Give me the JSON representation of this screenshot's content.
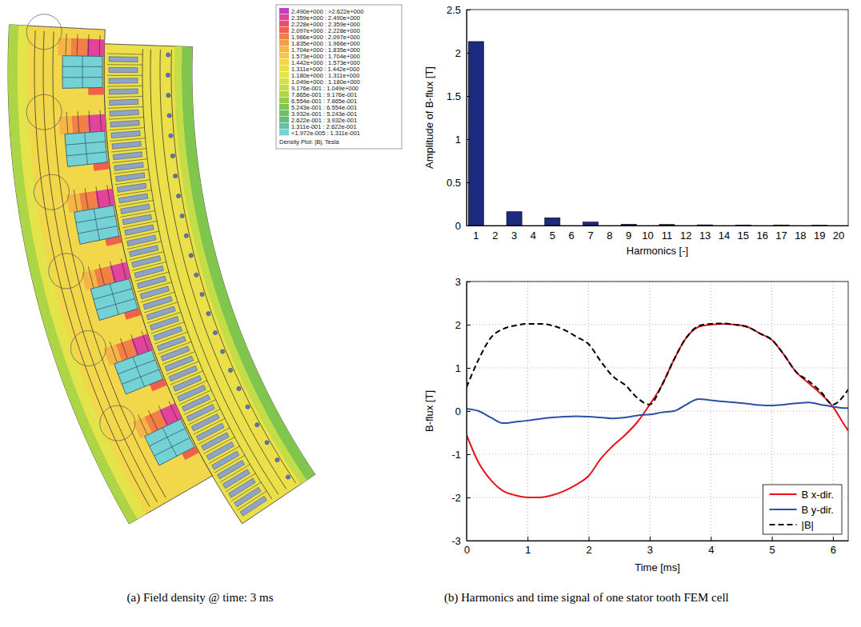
{
  "chart_data": [
    {
      "type": "bar",
      "x_label": "Harmonics [-]",
      "y_label": "Amplitude of B-flux [T]",
      "categories": [
        "1",
        "2",
        "3",
        "4",
        "5",
        "6",
        "7",
        "8",
        "9",
        "10",
        "11",
        "12",
        "13",
        "14",
        "15",
        "16",
        "17",
        "18",
        "19",
        "20"
      ],
      "values": [
        2.13,
        0,
        0.16,
        0,
        0.09,
        0,
        0.04,
        0,
        0.015,
        0,
        0.012,
        0,
        0.008,
        0,
        0.004,
        0,
        0.003,
        0,
        0.002,
        0
      ],
      "color": "#1c2a80",
      "ylim": [
        0,
        2.5
      ],
      "yticks": [
        0,
        0.5,
        1,
        1.5,
        2,
        2.5
      ],
      "grid": false
    },
    {
      "type": "line",
      "x_label": "Time [ms]",
      "y_label": "B-flux [T]",
      "x": [
        0,
        0.2,
        0.4,
        0.6,
        0.8,
        1.0,
        1.2,
        1.4,
        1.6,
        1.8,
        2.0,
        2.2,
        2.4,
        2.6,
        2.8,
        3.0,
        3.2,
        3.4,
        3.6,
        3.8,
        4.0,
        4.2,
        4.4,
        4.6,
        4.8,
        5.0,
        5.2,
        5.4,
        5.6,
        5.8,
        6.0,
        6.2,
        6.25
      ],
      "series": [
        {
          "name": "B x-dir.",
          "color": "#e8121b",
          "line_style": "solid",
          "values": [
            -0.55,
            -1.2,
            -1.6,
            -1.85,
            -1.95,
            -2.0,
            -2.0,
            -1.95,
            -1.85,
            -1.7,
            -1.5,
            -1.1,
            -0.8,
            -0.55,
            -0.25,
            0.15,
            0.6,
            1.2,
            1.7,
            1.95,
            2.0,
            2.02,
            2.0,
            1.95,
            1.8,
            1.65,
            1.3,
            0.9,
            0.65,
            0.4,
            0.1,
            -0.35,
            -0.45
          ]
        },
        {
          "name": "B y-dir.",
          "color": "#2b4fa8",
          "line_style": "solid",
          "values": [
            0.05,
            0.0,
            -0.15,
            -0.28,
            -0.25,
            -0.22,
            -0.18,
            -0.15,
            -0.13,
            -0.12,
            -0.13,
            -0.15,
            -0.17,
            -0.15,
            -0.1,
            -0.08,
            -0.03,
            0.0,
            0.15,
            0.28,
            0.25,
            0.22,
            0.2,
            0.17,
            0.14,
            0.13,
            0.15,
            0.18,
            0.2,
            0.15,
            0.1,
            0.07,
            0.07
          ]
        },
        {
          "name": "|B|",
          "color": "#000000",
          "line_style": "dashed",
          "values": [
            0.55,
            1.2,
            1.7,
            1.9,
            1.98,
            2.02,
            2.02,
            1.98,
            1.88,
            1.72,
            1.55,
            1.15,
            0.8,
            0.6,
            0.3,
            0.15,
            0.6,
            1.2,
            1.7,
            1.97,
            2.02,
            2.03,
            2.0,
            1.95,
            1.8,
            1.65,
            1.3,
            0.9,
            0.7,
            0.45,
            0.15,
            0.4,
            0.5
          ]
        }
      ],
      "xlim": [
        0,
        6.25
      ],
      "xticks": [
        0,
        1,
        2,
        3,
        4,
        5,
        6
      ],
      "ylim": [
        -3,
        3
      ],
      "yticks": [
        -3,
        -2,
        -1,
        0,
        1,
        2,
        3
      ],
      "grid": true,
      "legend": "lower right"
    }
  ],
  "field_plot": {
    "legend_title": "Density Plot: |B|, Tesla",
    "legend": [
      {
        "label": "2.490e+000 : >2.622e+000",
        "color": "#c23fc4"
      },
      {
        "label": "2.359e+000 : 2.490e+000",
        "color": "#e2449c"
      },
      {
        "label": "2.228e+000 : 2.359e+000",
        "color": "#ef4a68"
      },
      {
        "label": "2.097e+000 : 2.228e+000",
        "color": "#f1604a"
      },
      {
        "label": "1.966e+000 : 2.097e+000",
        "color": "#f27f45"
      },
      {
        "label": "1.835e+000 : 1.966e+000",
        "color": "#f49b43"
      },
      {
        "label": "1.704e+000 : 1.835e+000",
        "color": "#f5b445"
      },
      {
        "label": "1.573e+000 : 1.704e+000",
        "color": "#f5c848"
      },
      {
        "label": "1.442e+000 : 1.573e+000",
        "color": "#f2d74a"
      },
      {
        "label": "1.311e+000 : 1.442e+000",
        "color": "#ece04a"
      },
      {
        "label": "1.180e+000 : 1.311e+000",
        "color": "#e2e44a"
      },
      {
        "label": "1.049e+000 : 1.180e+000",
        "color": "#d4e24a"
      },
      {
        "label": "9.176e-001 : 1.049e+000",
        "color": "#c2dd48"
      },
      {
        "label": "7.865e-001 : 9.176e-001",
        "color": "#acd646"
      },
      {
        "label": "6.554e-001 : 7.865e-001",
        "color": "#95cd48"
      },
      {
        "label": "5.243e-001 : 6.554e-001",
        "color": "#80c54e"
      },
      {
        "label": "3.932e-001 : 5.243e-001",
        "color": "#6fbf64"
      },
      {
        "label": "2.622e-001 : 3.932e-001",
        "color": "#63bd82"
      },
      {
        "label": "1.311e-001 : 2.622e-001",
        "color": "#62c2a6"
      },
      {
        "label": "<1.972e-005 : 1.311e-001",
        "color": "#74d1d4"
      }
    ]
  },
  "captions": {
    "a": "(a) Field density @ time: 3 ms",
    "b": "(b) Harmonics and time signal of one stator tooth FEM cell"
  }
}
